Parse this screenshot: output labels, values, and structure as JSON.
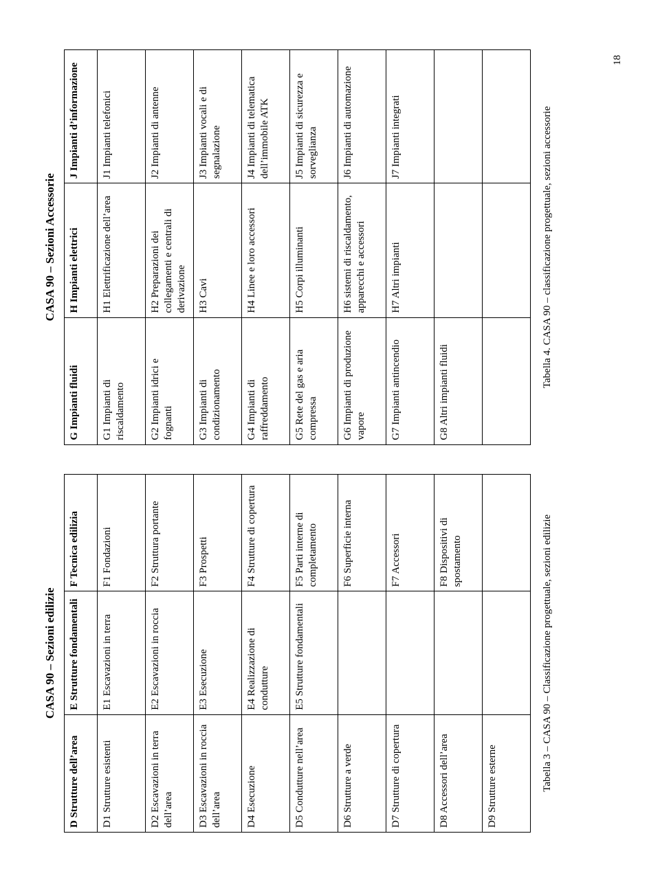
{
  "page_number": "18",
  "left": {
    "title": "CASA 90 – Sezioni edilizie",
    "caption": "Tabella 3 – CASA 90 – Classificazione progettuale,  sezioni edilizie",
    "headers": [
      "D  Strutture dell’area",
      "E  Strutture fondamentali",
      "F  Tecnica edilizia"
    ],
    "rows": [
      [
        "D1 Strutture esistenti",
        "E1 Escavazioni in terra",
        "F1  Fondazioni"
      ],
      [
        "D2 Escavazioni in terra dell’area",
        "E2 Escavazioni in roccia",
        "F2  Struttura portante"
      ],
      [
        "D3  Escavazioni in roccia dell’area",
        "E3 Esecuzione",
        "F3  Prospetti"
      ],
      [
        "D4 Esecuzione",
        "E4 Realizzazione di condutture",
        "F4  Strutture di copertura"
      ],
      [
        "D5 Condutture nell’area",
        "E5 Strutture fondamentali",
        "F5  Parti interne di completamento"
      ],
      [
        "D6  Strutture a verde",
        "",
        "F6  Superficie interna"
      ],
      [
        "D7 Strutture di copertura",
        "",
        "F7  Accessori"
      ],
      [
        "D8 Accessori dell’area",
        "",
        "F8 Dispositivi di spostamento"
      ],
      [
        "D9 Strutture esterne",
        "",
        ""
      ]
    ]
  },
  "right": {
    "title": "CASA 90 – Sezioni Accessorie",
    "caption": "Tabella 4.  CASA 90 – classificazione progettuale, sezioni accessorie",
    "headers": [
      "G Impianti  fluidi",
      "H  Impianti elettrici",
      "J  Impianti d’informazione"
    ],
    "rows": [
      [
        "G1 Impianti di riscaldamento",
        "H1  Elettrificazione dell’area",
        "J1  Impianti telefonici"
      ],
      [
        "G2 Impianti  idrici e fognanti",
        "H2  Preparazioni dei collegamenti e centrali di derivazione",
        "J2  Impianti di antenne"
      ],
      [
        "G3 Impianti di condizionamento",
        "H3 Cavi",
        "J3 Impianti vocali e di segnalazione"
      ],
      [
        "G4 Impianti di raffreddamento",
        "H4 Linee e loro accessori",
        "J4  Impianti di telematica dell’immobile ATK"
      ],
      [
        "G5  Rete del gas e aria compressa",
        "H5  Corpi illuminanti",
        "J5 Impianti di sicurezza e sorveglianza"
      ],
      [
        "G6  Impianti di produzione vapore",
        "H6 sistemi di riscaldamento, apparecchi e accessori",
        "J6  Impianti di automazione"
      ],
      [
        "G7 Impianti antincendio",
        "H7 Altri impianti",
        "J7  Impianti integrati"
      ],
      [
        "G8  Altri impianti fluidi",
        "",
        ""
      ],
      [
        "",
        "",
        ""
      ]
    ]
  }
}
